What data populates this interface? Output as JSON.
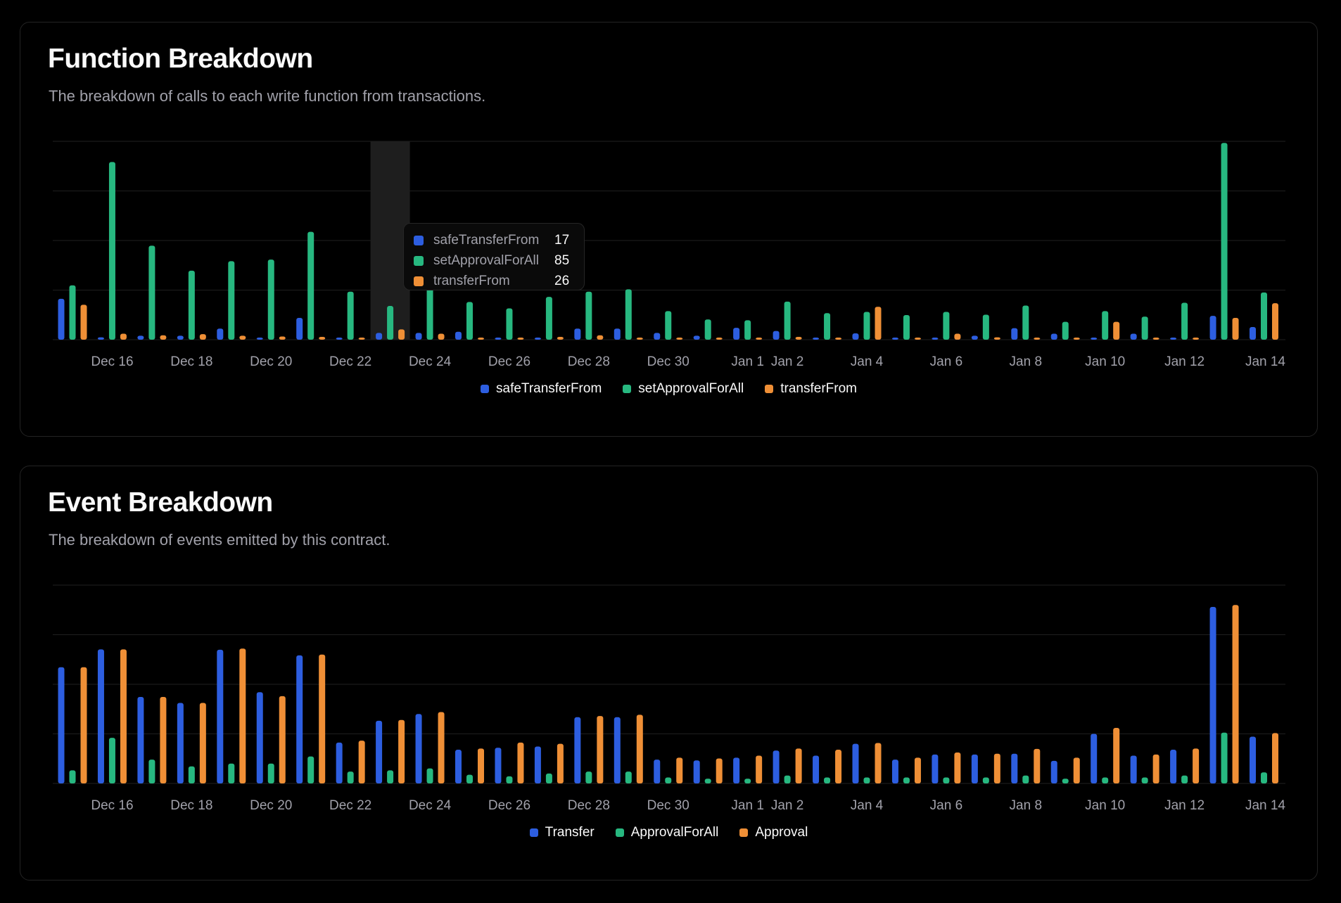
{
  "colors": {
    "blue": "#2d5ee0",
    "green": "#27b880",
    "orange": "#ef8f36",
    "grid": "#1f1f1f",
    "highlight": "#1e1e1e"
  },
  "function_card": {
    "title": "Function Breakdown",
    "description": "The breakdown of calls to each write function from transactions.",
    "tooltip": {
      "rows": [
        {
          "label": "safeTransferFrom",
          "value": "17"
        },
        {
          "label": "setApprovalForAll",
          "value": "85"
        },
        {
          "label": "transferFrom",
          "value": "26"
        }
      ]
    }
  },
  "event_card": {
    "title": "Event Breakdown",
    "description": "The breakdown of events emitted by this contract."
  },
  "chart_data": [
    {
      "type": "bar",
      "title": "Function Breakdown",
      "categories": [
        "Dec 15",
        "Dec 16",
        "Dec 17",
        "Dec 18",
        "Dec 19",
        "Dec 20",
        "Dec 21",
        "Dec 22",
        "Dec 23",
        "Dec 24",
        "Dec 25",
        "Dec 26",
        "Dec 27",
        "Dec 28",
        "Dec 29",
        "Dec 30",
        "Dec 31",
        "Jan 1",
        "Jan 2",
        "Jan 3",
        "Jan 4",
        "Jan 5",
        "Jan 6",
        "Jan 7",
        "Jan 8",
        "Jan 9",
        "Jan 10",
        "Jan 11",
        "Jan 12",
        "Jan 13",
        "Jan 14"
      ],
      "tick_labels": [
        "Dec 16",
        "Dec 18",
        "Dec 20",
        "Dec 22",
        "Dec 24",
        "Dec 26",
        "Dec 28",
        "Dec 30",
        "Jan 1",
        "Jan 2",
        "Jan 4",
        "Jan 6",
        "Jan 8",
        "Jan 10",
        "Jan 12",
        "Jan 14"
      ],
      "tick_indices": [
        1,
        3,
        5,
        7,
        9,
        11,
        13,
        15,
        17,
        18,
        20,
        22,
        24,
        26,
        28,
        30
      ],
      "highlight_index": 8,
      "ylim": [
        0,
        500
      ],
      "series": [
        {
          "name": "safeTransferFrom",
          "color": "blue",
          "values": [
            103,
            6,
            10,
            10,
            28,
            4,
            55,
            4,
            17,
            17,
            20,
            3,
            3,
            28,
            28,
            17,
            10,
            30,
            22,
            2,
            16,
            5,
            2,
            10,
            29,
            15,
            2,
            15,
            5,
            60,
            32
          ]
        },
        {
          "name": "setApprovalForAll",
          "color": "green",
          "values": [
            137,
            448,
            237,
            174,
            198,
            202,
            272,
            121,
            85,
            131,
            95,
            79,
            108,
            121,
            127,
            72,
            51,
            49,
            96,
            67,
            70,
            62,
            70,
            63,
            86,
            45,
            72,
            58,
            93,
            496,
            119
          ]
        },
        {
          "name": "transferFrom",
          "color": "orange",
          "values": [
            88,
            15,
            11,
            14,
            10,
            8,
            7,
            2,
            26,
            15,
            2,
            2,
            7,
            11,
            5,
            4,
            4,
            3,
            7,
            2,
            83,
            2,
            15,
            6,
            4,
            5,
            45,
            2,
            2,
            55,
            92
          ]
        }
      ]
    },
    {
      "type": "bar",
      "title": "Event Breakdown",
      "categories": [
        "Dec 15",
        "Dec 16",
        "Dec 17",
        "Dec 18",
        "Dec 19",
        "Dec 20",
        "Dec 21",
        "Dec 22",
        "Dec 23",
        "Dec 24",
        "Dec 25",
        "Dec 26",
        "Dec 27",
        "Dec 28",
        "Dec 29",
        "Dec 30",
        "Dec 31",
        "Jan 1",
        "Jan 2",
        "Jan 3",
        "Jan 4",
        "Jan 5",
        "Jan 6",
        "Jan 7",
        "Jan 8",
        "Jan 9",
        "Jan 10",
        "Jan 11",
        "Jan 12",
        "Jan 13",
        "Jan 14"
      ],
      "tick_labels": [
        "Dec 16",
        "Dec 18",
        "Dec 20",
        "Dec 22",
        "Dec 24",
        "Dec 26",
        "Dec 28",
        "Dec 30",
        "Jan 1",
        "Jan 2",
        "Jan 4",
        "Jan 6",
        "Jan 8",
        "Jan 10",
        "Jan 12",
        "Jan 14"
      ],
      "tick_indices": [
        1,
        3,
        5,
        7,
        9,
        11,
        13,
        15,
        17,
        18,
        20,
        22,
        24,
        26,
        28,
        30
      ],
      "ylim": [
        0,
        500
      ],
      "series": [
        {
          "name": "Transfer",
          "color": "blue",
          "values": [
            293,
            338,
            218,
            203,
            337,
            230,
            323,
            103,
            158,
            175,
            85,
            90,
            93,
            167,
            167,
            60,
            58,
            65,
            83,
            70,
            100,
            60,
            73,
            73,
            75,
            57,
            125,
            70,
            85,
            445,
            118
          ]
        },
        {
          "name": "ApprovalForAll",
          "color": "green",
          "values": [
            33,
            115,
            60,
            43,
            50,
            50,
            68,
            30,
            33,
            38,
            22,
            18,
            25,
            30,
            30,
            15,
            12,
            12,
            20,
            15,
            15,
            15,
            15,
            15,
            20,
            12,
            15,
            15,
            20,
            128,
            28
          ]
        },
        {
          "name": "Approval",
          "color": "orange",
          "values": [
            293,
            338,
            218,
            203,
            340,
            220,
            325,
            108,
            160,
            180,
            88,
            103,
            100,
            170,
            173,
            65,
            63,
            70,
            88,
            85,
            102,
            65,
            78,
            75,
            87,
            65,
            140,
            73,
            88,
            450,
            127
          ]
        }
      ]
    }
  ]
}
